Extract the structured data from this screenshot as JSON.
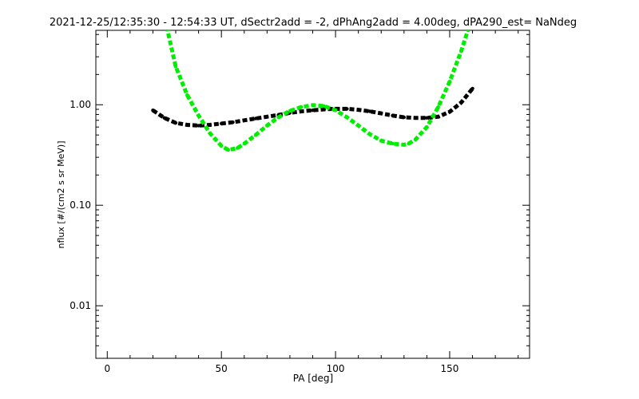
{
  "chart_data": {
    "type": "scatter",
    "title": "2021-12-25/12:35:30 - 12:54:33 UT, dSectr2add = -2, dPhAng2add = 4.00deg, dPA290_est=   NaNdeg",
    "xlabel": "PA [deg]",
    "ylabel": "nflux [#/(cm2 s sr MeV)]",
    "xlim": [
      -5,
      185
    ],
    "ylim": [
      0.003,
      5.5
    ],
    "yscale": "log",
    "xticks": [
      0,
      50,
      100,
      150
    ],
    "xtick_labels": [
      "0",
      "50",
      "100",
      "150"
    ],
    "yticks": [
      0.01,
      0.1,
      1.0
    ],
    "ytick_labels": [
      "0.01",
      "0.10",
      "1.00"
    ],
    "grid": false,
    "series": [
      {
        "color": "#000000",
        "x": [
          20,
          25,
          30,
          35,
          40,
          45,
          50,
          55,
          60,
          65,
          70,
          75,
          80,
          85,
          90,
          95,
          100,
          105,
          110,
          115,
          120,
          125,
          130,
          135,
          140,
          145,
          150,
          155,
          160
        ],
        "y": [
          0.88,
          0.74,
          0.66,
          0.63,
          0.62,
          0.63,
          0.65,
          0.67,
          0.7,
          0.73,
          0.76,
          0.79,
          0.83,
          0.86,
          0.88,
          0.9,
          0.91,
          0.91,
          0.89,
          0.86,
          0.82,
          0.78,
          0.75,
          0.74,
          0.74,
          0.76,
          0.85,
          1.05,
          1.45
        ]
      },
      {
        "color": "#00ee00",
        "x": [
          26,
          30,
          35,
          40,
          45,
          50,
          53,
          57,
          60,
          65,
          70,
          75,
          80,
          85,
          90,
          95,
          100,
          105,
          110,
          115,
          120,
          125,
          130,
          132,
          135,
          140,
          145,
          150,
          155,
          158
        ],
        "y": [
          6.0,
          2.4,
          1.25,
          0.78,
          0.52,
          0.39,
          0.355,
          0.37,
          0.41,
          0.5,
          0.62,
          0.75,
          0.87,
          0.95,
          0.99,
          0.97,
          0.88,
          0.75,
          0.62,
          0.51,
          0.44,
          0.41,
          0.4,
          0.41,
          0.45,
          0.6,
          0.95,
          1.7,
          3.4,
          5.5
        ]
      }
    ]
  }
}
